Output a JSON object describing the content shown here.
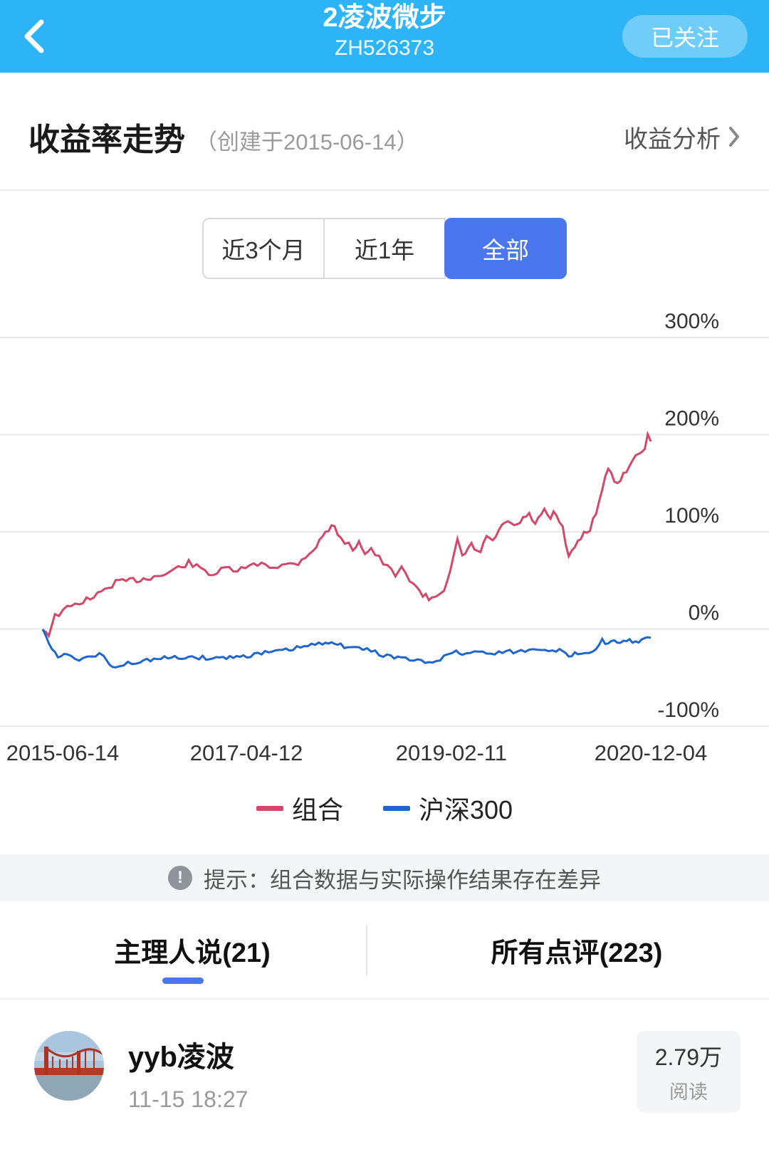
{
  "header": {
    "title": "2凌波微步",
    "subtitle": "ZH526373",
    "follow_button": "已关注"
  },
  "section": {
    "title": "收益率走势",
    "created": "（创建于2015-06-14）",
    "analysis_link": "收益分析"
  },
  "range_tabs": {
    "0": {
      "label": "近3个月"
    },
    "1": {
      "label": "近1年"
    },
    "2": {
      "label": "全部"
    }
  },
  "chart_data": {
    "type": "line",
    "title": "收益率走势",
    "ylim": [
      -100,
      300
    ],
    "y_ticks": [
      "300%",
      "200%",
      "100%",
      "0%",
      "-100%"
    ],
    "y_tick_values": [
      300,
      200,
      100,
      0,
      -100
    ],
    "x_ticks": [
      "2015-06-14",
      "2017-04-12",
      "2019-02-11",
      "2020-12-04"
    ],
    "x_tick_pos": [
      0,
      0.335,
      0.672,
      1
    ],
    "grid": true,
    "legend_position": "bottom",
    "series": [
      {
        "name": "组合",
        "color": "#d34769",
        "noise": 1,
        "points": [
          [
            0,
            0
          ],
          [
            0.01,
            -5
          ],
          [
            0.02,
            13
          ],
          [
            0.04,
            21
          ],
          [
            0.06,
            27
          ],
          [
            0.09,
            35
          ],
          [
            0.12,
            48
          ],
          [
            0.16,
            51
          ],
          [
            0.2,
            56
          ],
          [
            0.24,
            68
          ],
          [
            0.26,
            62
          ],
          [
            0.28,
            56
          ],
          [
            0.3,
            62
          ],
          [
            0.32,
            60
          ],
          [
            0.34,
            64
          ],
          [
            0.36,
            68
          ],
          [
            0.38,
            64
          ],
          [
            0.4,
            66
          ],
          [
            0.42,
            68
          ],
          [
            0.45,
            85
          ],
          [
            0.465,
            100
          ],
          [
            0.48,
            107
          ],
          [
            0.49,
            92
          ],
          [
            0.51,
            83
          ],
          [
            0.52,
            90
          ],
          [
            0.53,
            79
          ],
          [
            0.54,
            82
          ],
          [
            0.56,
            68
          ],
          [
            0.58,
            55
          ],
          [
            0.59,
            62
          ],
          [
            0.61,
            47
          ],
          [
            0.62,
            38
          ],
          [
            0.635,
            31
          ],
          [
            0.65,
            36
          ],
          [
            0.66,
            42
          ],
          [
            0.67,
            58
          ],
          [
            0.682,
            90
          ],
          [
            0.69,
            74
          ],
          [
            0.705,
            86
          ],
          [
            0.72,
            78
          ],
          [
            0.73,
            96
          ],
          [
            0.74,
            89
          ],
          [
            0.75,
            102
          ],
          [
            0.765,
            110
          ],
          [
            0.78,
            106
          ],
          [
            0.79,
            114
          ],
          [
            0.8,
            117
          ],
          [
            0.81,
            109
          ],
          [
            0.825,
            121
          ],
          [
            0.835,
            113
          ],
          [
            0.84,
            119
          ],
          [
            0.855,
            105
          ],
          [
            0.865,
            72
          ],
          [
            0.875,
            85
          ],
          [
            0.89,
            99
          ],
          [
            0.9,
            103
          ],
          [
            0.91,
            121
          ],
          [
            0.925,
            155
          ],
          [
            0.93,
            166
          ],
          [
            0.935,
            158
          ],
          [
            0.945,
            149
          ],
          [
            0.955,
            160
          ],
          [
            0.965,
            168
          ],
          [
            0.975,
            176
          ],
          [
            0.99,
            188
          ],
          [
            0.995,
            198
          ],
          [
            1,
            193
          ]
        ]
      },
      {
        "name": "沪深300",
        "color": "#1e66cc",
        "noise": 0.7,
        "points": [
          [
            0,
            0
          ],
          [
            0.005,
            -8
          ],
          [
            0.02,
            -25
          ],
          [
            0.03,
            -30
          ],
          [
            0.04,
            -24
          ],
          [
            0.06,
            -33
          ],
          [
            0.08,
            -28
          ],
          [
            0.1,
            -26
          ],
          [
            0.105,
            -34
          ],
          [
            0.12,
            -40
          ],
          [
            0.14,
            -35
          ],
          [
            0.16,
            -33
          ],
          [
            0.2,
            -30
          ],
          [
            0.24,
            -29
          ],
          [
            0.28,
            -30
          ],
          [
            0.33,
            -28
          ],
          [
            0.36,
            -25
          ],
          [
            0.4,
            -22
          ],
          [
            0.43,
            -18
          ],
          [
            0.46,
            -15
          ],
          [
            0.475,
            -12
          ],
          [
            0.49,
            -17
          ],
          [
            0.52,
            -20
          ],
          [
            0.54,
            -22
          ],
          [
            0.56,
            -27
          ],
          [
            0.59,
            -30
          ],
          [
            0.61,
            -32
          ],
          [
            0.635,
            -35
          ],
          [
            0.66,
            -29
          ],
          [
            0.68,
            -22
          ],
          [
            0.69,
            -26
          ],
          [
            0.71,
            -23
          ],
          [
            0.73,
            -25
          ],
          [
            0.75,
            -24
          ],
          [
            0.78,
            -23
          ],
          [
            0.8,
            -22
          ],
          [
            0.82,
            -20
          ],
          [
            0.85,
            -22
          ],
          [
            0.865,
            -28
          ],
          [
            0.88,
            -25
          ],
          [
            0.905,
            -22
          ],
          [
            0.92,
            -12
          ],
          [
            0.93,
            -15
          ],
          [
            0.94,
            -13
          ],
          [
            0.95,
            -15
          ],
          [
            0.965,
            -12
          ],
          [
            0.975,
            -13
          ],
          [
            0.99,
            -11
          ],
          [
            1,
            -9
          ]
        ]
      }
    ]
  },
  "legend": {
    "0": {
      "label": "组合"
    },
    "1": {
      "label": "沪深300"
    }
  },
  "notice": {
    "text": "提示：组合数据与实际操作结果存在差异"
  },
  "comment_tabs": {
    "0": {
      "label": "主理人说(21)"
    },
    "1": {
      "label": "所有点评(223)"
    }
  },
  "post": {
    "author": "yyb凌波",
    "time": "11-15 18:27",
    "read_count": "2.79万",
    "read_label": "阅读"
  }
}
